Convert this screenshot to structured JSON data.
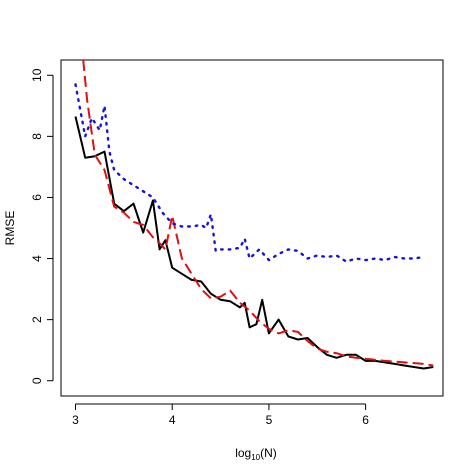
{
  "chart_data": {
    "type": "line",
    "title": "",
    "xlabel_base": "log",
    "xlabel_sub": "10",
    "xlabel_rest": "(N)",
    "ylabel": "RMSE",
    "xlim": [
      2.85,
      6.8
    ],
    "ylim": [
      -0.5,
      10.5
    ],
    "xticks": [
      3,
      4,
      5,
      6
    ],
    "yticks": [
      0,
      2,
      4,
      6,
      8,
      10
    ],
    "grid": false,
    "legend": "none",
    "series": [
      {
        "color": "#000000",
        "style": "solid",
        "x": [
          3.0,
          3.1,
          3.2,
          3.3,
          3.4,
          3.5,
          3.6,
          3.7,
          3.8,
          3.87,
          3.93,
          4.0,
          4.1,
          4.2,
          4.3,
          4.4,
          4.5,
          4.6,
          4.7,
          4.75,
          4.8,
          4.87,
          4.93,
          5.0,
          5.1,
          5.2,
          5.3,
          5.4,
          5.5,
          5.6,
          5.7,
          5.8,
          5.9,
          6.0,
          6.1,
          6.2,
          6.3,
          6.4,
          6.5,
          6.6,
          6.7
        ],
        "y": [
          8.65,
          7.3,
          7.35,
          7.5,
          5.8,
          5.55,
          5.8,
          4.85,
          5.9,
          4.3,
          4.6,
          3.7,
          3.5,
          3.3,
          3.25,
          2.85,
          2.65,
          2.6,
          2.4,
          2.55,
          1.75,
          1.85,
          2.65,
          1.55,
          2.0,
          1.45,
          1.35,
          1.4,
          1.1,
          0.85,
          0.75,
          0.85,
          0.85,
          0.65,
          0.65,
          0.6,
          0.55,
          0.5,
          0.45,
          0.4,
          0.45
        ]
      },
      {
        "color": "#dd1111",
        "style": "dashed",
        "x": [
          3.08,
          3.12,
          3.2,
          3.3,
          3.4,
          3.5,
          3.6,
          3.7,
          3.8,
          3.87,
          3.93,
          4.0,
          4.1,
          4.2,
          4.3,
          4.4,
          4.5,
          4.6,
          4.7,
          4.8,
          4.9,
          5.0,
          5.1,
          5.2,
          5.3,
          5.4,
          5.5,
          5.6,
          5.7,
          5.8,
          5.9,
          6.0,
          6.2,
          6.4,
          6.6,
          6.7
        ],
        "y": [
          10.5,
          9.2,
          7.4,
          6.9,
          5.7,
          5.5,
          5.2,
          5.1,
          4.7,
          4.5,
          4.3,
          5.4,
          4.0,
          3.5,
          3.0,
          2.7,
          2.75,
          2.95,
          2.55,
          2.3,
          1.95,
          1.7,
          1.55,
          1.65,
          1.6,
          1.3,
          1.05,
          0.95,
          0.9,
          0.8,
          0.75,
          0.72,
          0.65,
          0.6,
          0.55,
          0.5
        ]
      },
      {
        "color": "#1515d6",
        "style": "dotted",
        "x": [
          3.0,
          3.1,
          3.17,
          3.25,
          3.3,
          3.35,
          3.4,
          3.5,
          3.6,
          3.7,
          3.8,
          3.9,
          4.0,
          4.1,
          4.2,
          4.3,
          4.35,
          4.4,
          4.45,
          4.5,
          4.6,
          4.7,
          4.75,
          4.8,
          4.9,
          5.0,
          5.1,
          5.2,
          5.3,
          5.4,
          5.5,
          5.6,
          5.7,
          5.8,
          5.9,
          6.0,
          6.1,
          6.2,
          6.3,
          6.4,
          6.5,
          6.6
        ],
        "y": [
          9.7,
          8.0,
          8.6,
          8.2,
          9.0,
          7.5,
          6.9,
          6.6,
          6.4,
          6.2,
          6.0,
          5.5,
          5.15,
          5.05,
          5.05,
          5.1,
          5.0,
          5.45,
          4.25,
          4.3,
          4.3,
          4.35,
          4.65,
          4.0,
          4.3,
          3.95,
          4.15,
          4.3,
          4.25,
          4.0,
          4.1,
          4.05,
          4.1,
          3.9,
          4.0,
          3.95,
          4.0,
          3.95,
          4.05,
          4.0,
          4.0,
          4.05
        ]
      }
    ]
  }
}
